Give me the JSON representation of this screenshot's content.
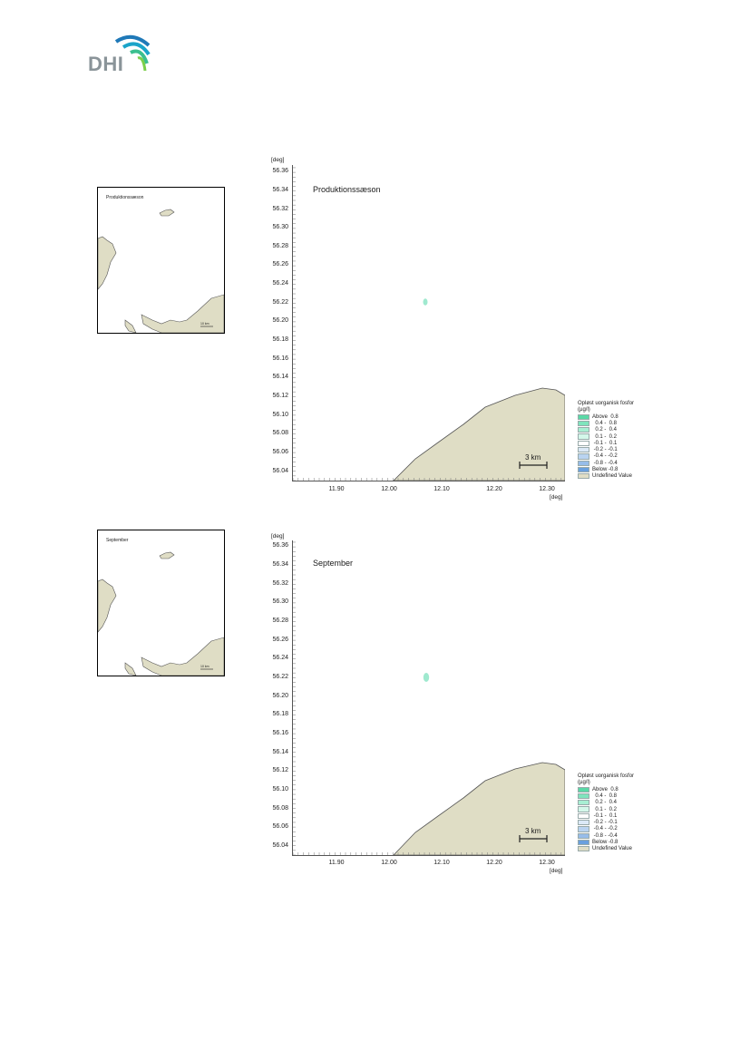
{
  "logo": {
    "text": "DHI"
  },
  "legend": {
    "title_line1": "Opløst uorganisk fosfor",
    "title_line2": "(µg/l)",
    "items": [
      {
        "label": "Above  0.8",
        "color": "#5ad9a6"
      },
      {
        "label": "  0.4 -  0.8",
        "color": "#80e4bd"
      },
      {
        "label": "  0.2 -  0.4",
        "color": "#a8efd3"
      },
      {
        "label": "  0.1 -  0.2",
        "color": "#d4f8ea"
      },
      {
        "label": " -0.1 -  0.1",
        "color": "#ffffff"
      },
      {
        "label": " -0.2 - -0.1",
        "color": "#dbe9f7"
      },
      {
        "label": " -0.4 - -0.2",
        "color": "#b9d3f0"
      },
      {
        "label": " -0.8 - -0.4",
        "color": "#97bde9"
      },
      {
        "label": "Below -0.8",
        "color": "#6aa0de"
      },
      {
        "label": "Undefined Value",
        "color": "#dfddc5"
      }
    ]
  },
  "axes": {
    "y_unit": "[deg]",
    "x_unit": "[deg]",
    "y_ticks": [
      "56.36",
      "56.34",
      "56.32",
      "56.30",
      "56.28",
      "56.26",
      "56.24",
      "56.22",
      "56.20",
      "56.18",
      "56.16",
      "56.14",
      "56.12",
      "56.10",
      "56.08",
      "56.06",
      "56.04"
    ],
    "x_ticks": [
      "11.90",
      "12.00",
      "12.10",
      "12.20",
      "12.30"
    ]
  },
  "scale_bar": {
    "label": "3 km"
  },
  "panels": [
    {
      "title": "Produktionssæson",
      "inset_title": "Produktionssæson",
      "inset_scale": "10 km"
    },
    {
      "title": "September",
      "inset_title": "September",
      "inset_scale": "10 km"
    }
  ],
  "colors": {
    "land": "#dfddc5",
    "coast": "#555555",
    "plume": "#9fe9cf"
  }
}
